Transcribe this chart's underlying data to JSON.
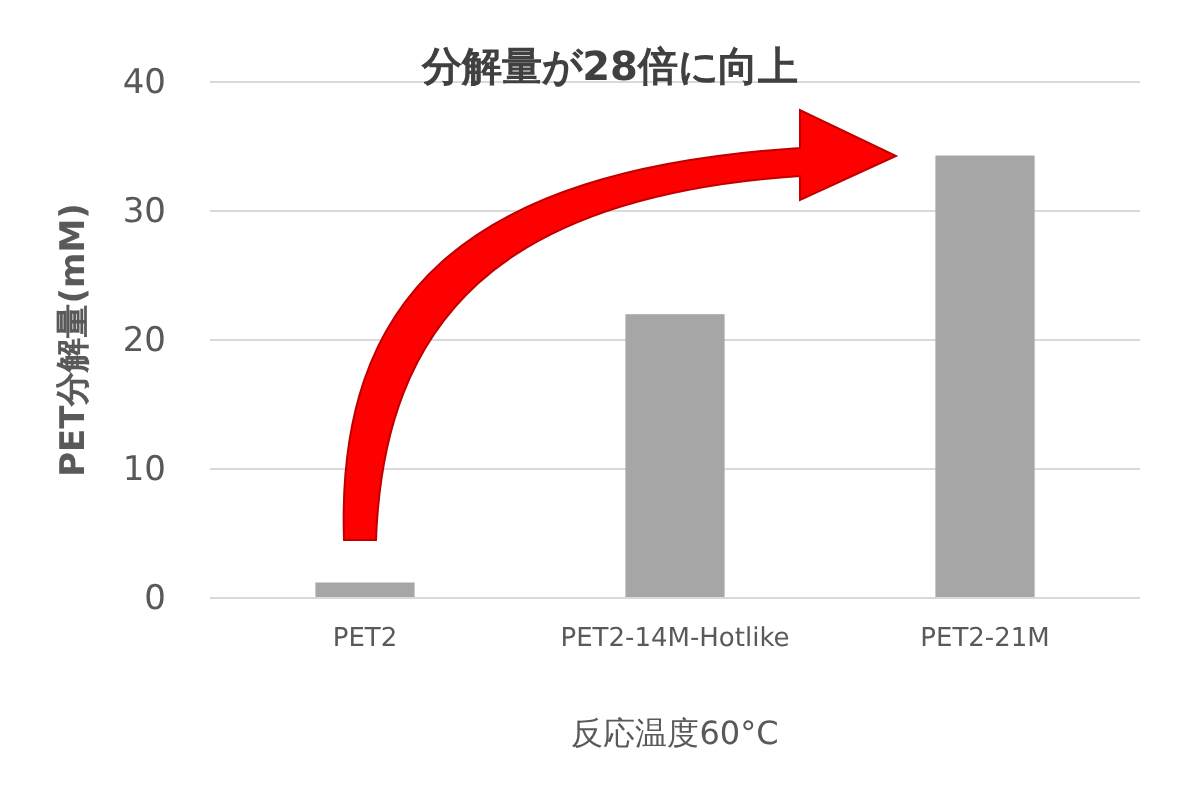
{
  "chart_data": {
    "type": "bar",
    "xlabel": "反応温度60°C",
    "ylabel": "PET分解量(mM)",
    "categories": [
      "PET2",
      "PET2-14M-Hotlike",
      "PET2-21M"
    ],
    "values": [
      1.2,
      22.0,
      34.3
    ],
    "color": "#a6a6a6",
    "ylim": [
      0,
      40
    ],
    "yticks": [
      0,
      10,
      20,
      30,
      40
    ],
    "grid": "y",
    "annotations": [
      "分解量が28倍に向上"
    ]
  }
}
